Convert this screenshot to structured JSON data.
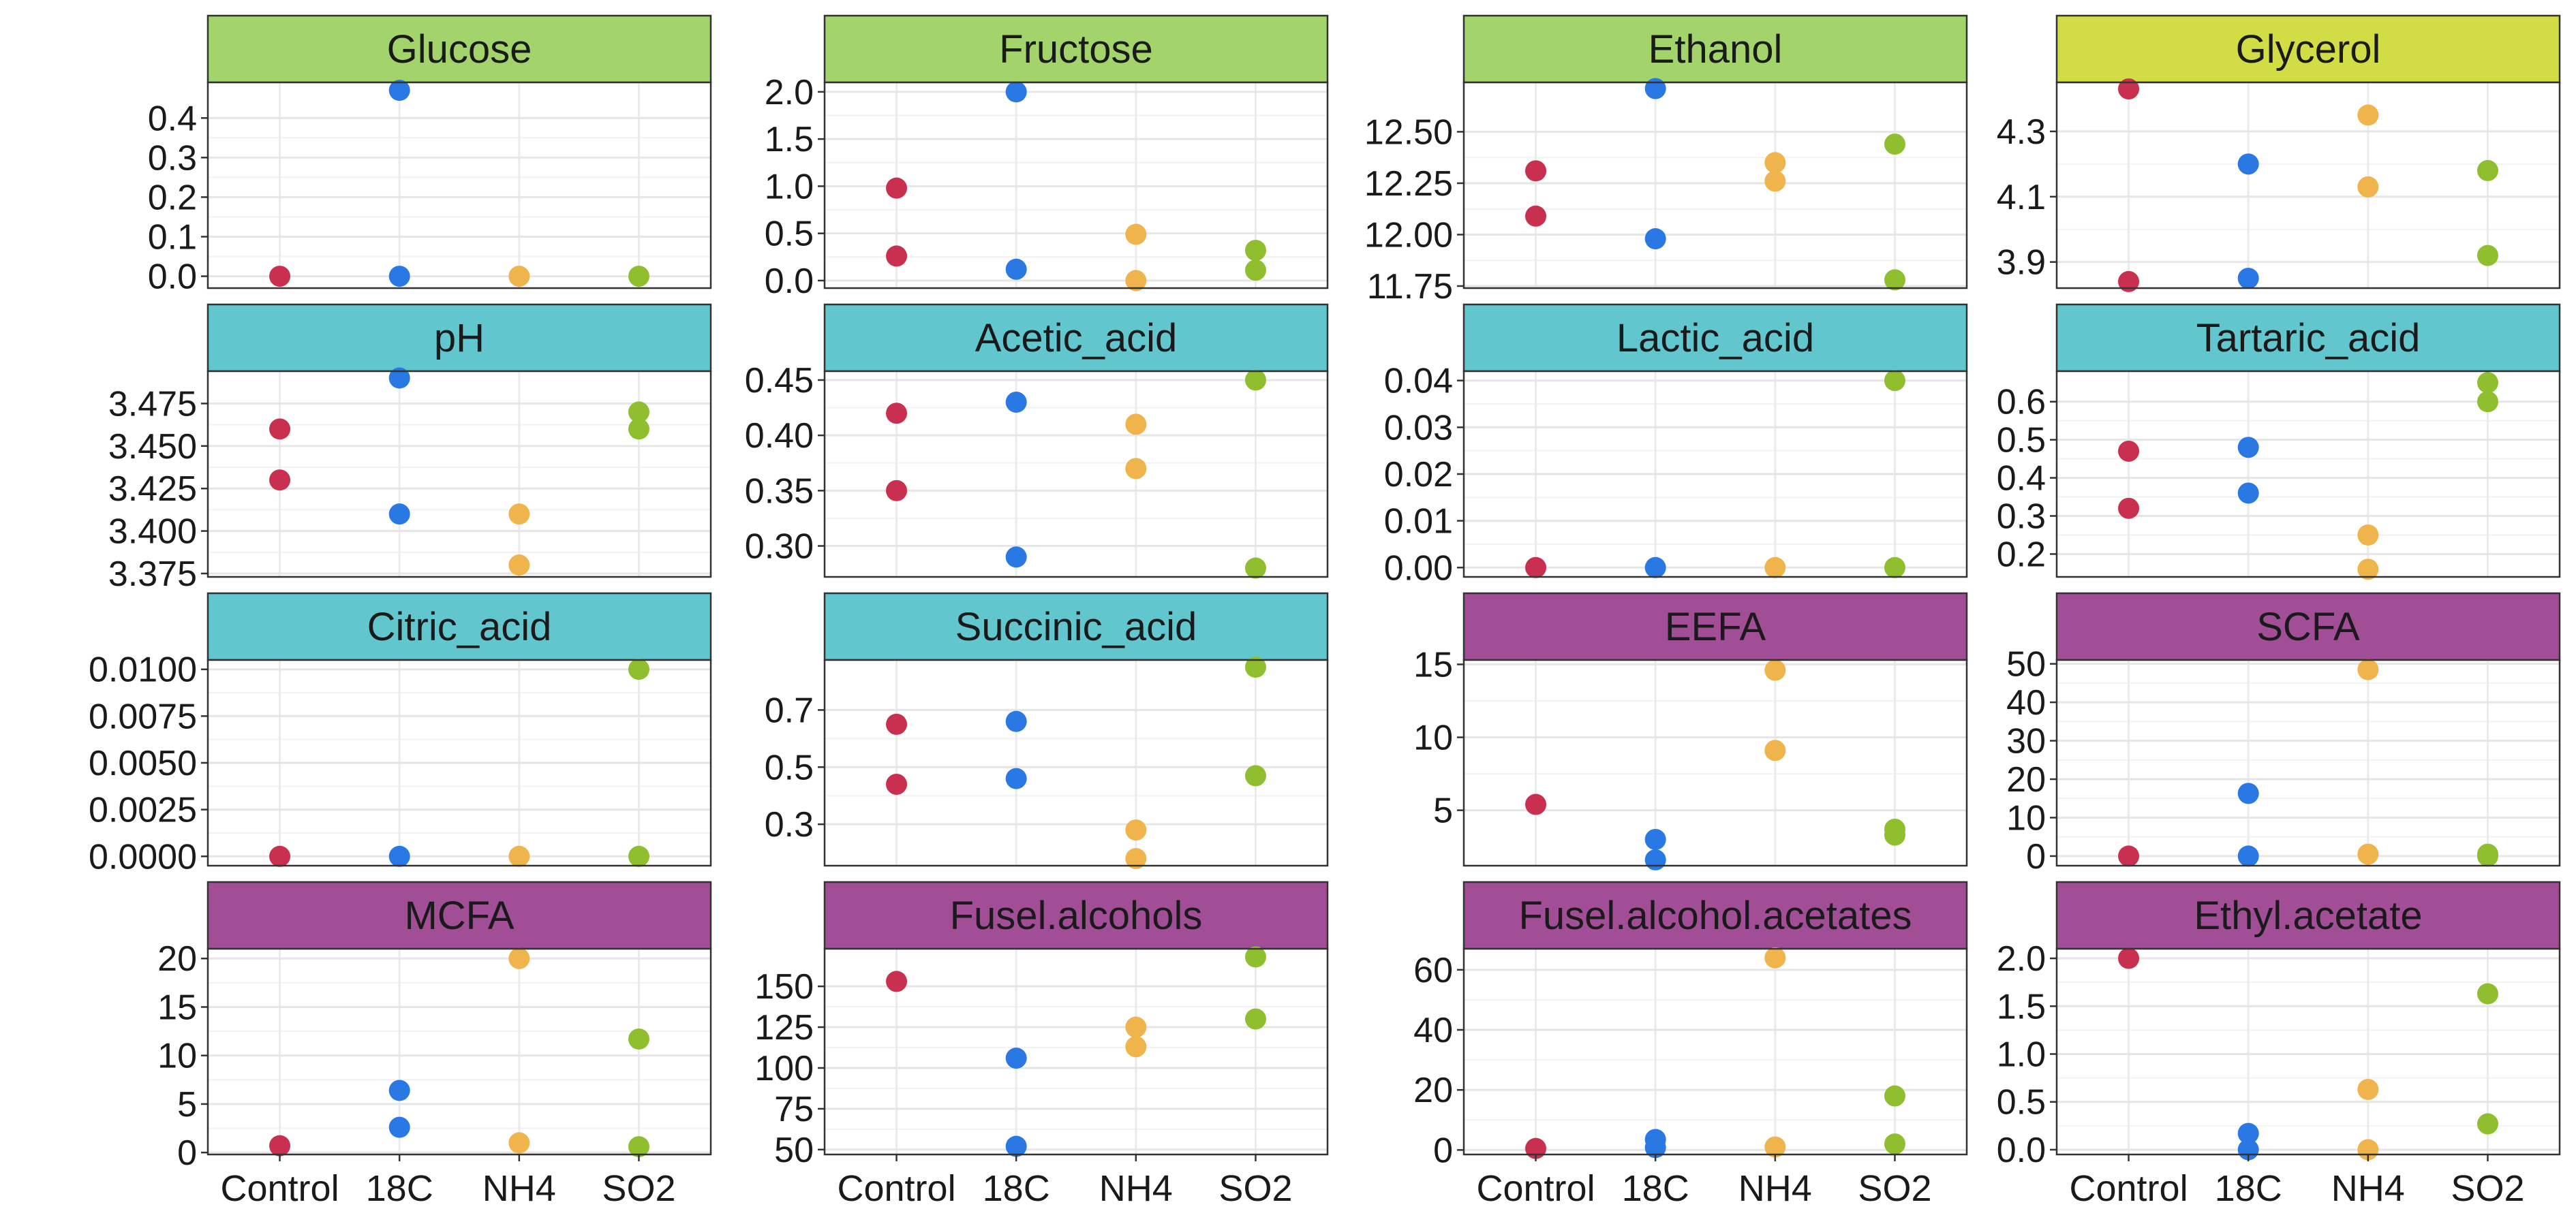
{
  "chart_data": {
    "type": "scatter",
    "layout": "facet-grid",
    "categories": [
      "Control",
      "18C",
      "NH4",
      "SO2"
    ],
    "category_colors": {
      "Control": "#c9304f",
      "18C": "#2a78e4",
      "NH4": "#f0b44c",
      "SO2": "#8fbf2e"
    },
    "strip_group_colors": {
      "green": "#a3d36b",
      "yellow": "#d2dc44",
      "teal": "#62c6cf",
      "purple": "#a24e97"
    },
    "panels": [
      {
        "title": "Glucose",
        "strip": "green",
        "ylim": [
          -0.03,
          0.49
        ],
        "ticks": [
          0.0,
          0.1,
          0.2,
          0.3,
          0.4
        ],
        "tick_labels": [
          "0.0",
          "0.1",
          "0.2",
          "0.3",
          "0.4"
        ],
        "points": [
          {
            "x": "Control",
            "y": 0.0
          },
          {
            "x": "18C",
            "y": 0.47
          },
          {
            "x": "18C",
            "y": 0.0
          },
          {
            "x": "NH4",
            "y": 0.0
          },
          {
            "x": "SO2",
            "y": 0.0
          }
        ]
      },
      {
        "title": "Fructose",
        "strip": "green",
        "ylim": [
          -0.08,
          2.1
        ],
        "ticks": [
          0.0,
          0.5,
          1.0,
          1.5,
          2.0
        ],
        "tick_labels": [
          "0.0",
          "0.5",
          "1.0",
          "1.5",
          "2.0"
        ],
        "points": [
          {
            "x": "Control",
            "y": 0.98
          },
          {
            "x": "Control",
            "y": 0.26
          },
          {
            "x": "18C",
            "y": 2.0
          },
          {
            "x": "18C",
            "y": 0.12
          },
          {
            "x": "NH4",
            "y": 0.49
          },
          {
            "x": "NH4",
            "y": 0.0
          },
          {
            "x": "SO2",
            "y": 0.32
          },
          {
            "x": "SO2",
            "y": 0.11
          }
        ]
      },
      {
        "title": "Ethanol",
        "strip": "green",
        "ylim": [
          11.74,
          12.74
        ],
        "ticks": [
          11.75,
          12.0,
          12.25,
          12.5
        ],
        "tick_labels": [
          "11.75",
          "12.00",
          "12.25",
          "12.50"
        ],
        "points": [
          {
            "x": "Control",
            "y": 12.31
          },
          {
            "x": "Control",
            "y": 12.09
          },
          {
            "x": "18C",
            "y": 12.71
          },
          {
            "x": "18C",
            "y": 11.98
          },
          {
            "x": "NH4",
            "y": 12.35
          },
          {
            "x": "NH4",
            "y": 12.26
          },
          {
            "x": "SO2",
            "y": 12.44
          },
          {
            "x": "SO2",
            "y": 11.78
          }
        ]
      },
      {
        "title": "Glycerol",
        "strip": "yellow",
        "ylim": [
          3.82,
          4.45
        ],
        "ticks": [
          3.9,
          4.1,
          4.3
        ],
        "tick_labels": [
          "3.9",
          "4.1",
          "4.3"
        ],
        "points": [
          {
            "x": "Control",
            "y": 4.43
          },
          {
            "x": "Control",
            "y": 3.84
          },
          {
            "x": "18C",
            "y": 4.2
          },
          {
            "x": "18C",
            "y": 3.85
          },
          {
            "x": "NH4",
            "y": 4.35
          },
          {
            "x": "NH4",
            "y": 4.13
          },
          {
            "x": "SO2",
            "y": 4.18
          },
          {
            "x": "SO2",
            "y": 3.92
          }
        ]
      },
      {
        "title": "pH",
        "strip": "teal",
        "ylim": [
          3.373,
          3.494
        ],
        "ticks": [
          3.375,
          3.4,
          3.425,
          3.45,
          3.475
        ],
        "tick_labels": [
          "3.375",
          "3.400",
          "3.425",
          "3.450",
          "3.475"
        ],
        "points": [
          {
            "x": "Control",
            "y": 3.46
          },
          {
            "x": "Control",
            "y": 3.43
          },
          {
            "x": "18C",
            "y": 3.49
          },
          {
            "x": "18C",
            "y": 3.41
          },
          {
            "x": "NH4",
            "y": 3.41
          },
          {
            "x": "NH4",
            "y": 3.38
          },
          {
            "x": "SO2",
            "y": 3.47
          },
          {
            "x": "SO2",
            "y": 3.46
          }
        ]
      },
      {
        "title": "Acetic_acid",
        "strip": "teal",
        "ylim": [
          0.272,
          0.458
        ],
        "ticks": [
          0.3,
          0.35,
          0.4,
          0.45
        ],
        "tick_labels": [
          "0.30",
          "0.35",
          "0.40",
          "0.45"
        ],
        "points": [
          {
            "x": "Control",
            "y": 0.42
          },
          {
            "x": "Control",
            "y": 0.35
          },
          {
            "x": "18C",
            "y": 0.43
          },
          {
            "x": "18C",
            "y": 0.29
          },
          {
            "x": "NH4",
            "y": 0.41
          },
          {
            "x": "NH4",
            "y": 0.37
          },
          {
            "x": "SO2",
            "y": 0.45
          },
          {
            "x": "SO2",
            "y": 0.28
          }
        ]
      },
      {
        "title": "Lactic_acid",
        "strip": "teal",
        "ylim": [
          -0.002,
          0.042
        ],
        "ticks": [
          0.0,
          0.01,
          0.02,
          0.03,
          0.04
        ],
        "tick_labels": [
          "0.00",
          "0.01",
          "0.02",
          "0.03",
          "0.04"
        ],
        "points": [
          {
            "x": "Control",
            "y": 0.0
          },
          {
            "x": "18C",
            "y": 0.0
          },
          {
            "x": "NH4",
            "y": 0.0
          },
          {
            "x": "SO2",
            "y": 0.04
          },
          {
            "x": "SO2",
            "y": 0.0
          }
        ]
      },
      {
        "title": "Tartaric_acid",
        "strip": "teal",
        "ylim": [
          0.14,
          0.68
        ],
        "ticks": [
          0.2,
          0.3,
          0.4,
          0.5,
          0.6
        ],
        "tick_labels": [
          "0.2",
          "0.3",
          "0.4",
          "0.5",
          "0.6"
        ],
        "points": [
          {
            "x": "Control",
            "y": 0.47
          },
          {
            "x": "Control",
            "y": 0.32
          },
          {
            "x": "18C",
            "y": 0.48
          },
          {
            "x": "18C",
            "y": 0.36
          },
          {
            "x": "NH4",
            "y": 0.25
          },
          {
            "x": "NH4",
            "y": 0.16
          },
          {
            "x": "SO2",
            "y": 0.65
          },
          {
            "x": "SO2",
            "y": 0.6
          }
        ]
      },
      {
        "title": "Citric_acid",
        "strip": "teal",
        "ylim": [
          -0.0005,
          0.0105
        ],
        "ticks": [
          0.0,
          0.0025,
          0.005,
          0.0075,
          0.01
        ],
        "tick_labels": [
          "0.0000",
          "0.0025",
          "0.0050",
          "0.0075",
          "0.0100"
        ],
        "points": [
          {
            "x": "Control",
            "y": 0.0
          },
          {
            "x": "18C",
            "y": 0.0
          },
          {
            "x": "NH4",
            "y": 0.0
          },
          {
            "x": "SO2",
            "y": 0.01
          },
          {
            "x": "SO2",
            "y": 0.0
          }
        ]
      },
      {
        "title": "Succinic_acid",
        "strip": "teal",
        "ylim": [
          0.155,
          0.875
        ],
        "ticks": [
          0.3,
          0.5,
          0.7
        ],
        "tick_labels": [
          "0.3",
          "0.5",
          "0.7"
        ],
        "points": [
          {
            "x": "Control",
            "y": 0.65
          },
          {
            "x": "Control",
            "y": 0.44
          },
          {
            "x": "18C",
            "y": 0.66
          },
          {
            "x": "18C",
            "y": 0.46
          },
          {
            "x": "NH4",
            "y": 0.28
          },
          {
            "x": "NH4",
            "y": 0.18
          },
          {
            "x": "SO2",
            "y": 0.85
          },
          {
            "x": "SO2",
            "y": 0.47
          }
        ]
      },
      {
        "title": "EEFA",
        "strip": "purple",
        "ylim": [
          1.2,
          15.3
        ],
        "ticks": [
          5,
          10,
          15
        ],
        "tick_labels": [
          "5",
          "10",
          "15"
        ],
        "points": [
          {
            "x": "Control",
            "y": 5.4
          },
          {
            "x": "18C",
            "y": 3.0
          },
          {
            "x": "18C",
            "y": 1.6
          },
          {
            "x": "NH4",
            "y": 14.6
          },
          {
            "x": "NH4",
            "y": 9.1
          },
          {
            "x": "SO2",
            "y": 3.7
          },
          {
            "x": "SO2",
            "y": 3.3
          }
        ]
      },
      {
        "title": "SCFA",
        "strip": "purple",
        "ylim": [
          -2.5,
          51.0
        ],
        "ticks": [
          0,
          10,
          20,
          30,
          40,
          50
        ],
        "tick_labels": [
          "0",
          "10",
          "20",
          "30",
          "40",
          "50"
        ],
        "points": [
          {
            "x": "Control",
            "y": 0.0
          },
          {
            "x": "18C",
            "y": 16.3
          },
          {
            "x": "18C",
            "y": 0.0
          },
          {
            "x": "NH4",
            "y": 48.5
          },
          {
            "x": "NH4",
            "y": 0.5
          },
          {
            "x": "SO2",
            "y": 0.5
          },
          {
            "x": "SO2",
            "y": 0.0
          }
        ]
      },
      {
        "title": "MCFA",
        "strip": "purple",
        "ylim": [
          -0.2,
          21.0
        ],
        "ticks": [
          0,
          5,
          10,
          15,
          20
        ],
        "tick_labels": [
          "0",
          "5",
          "10",
          "15",
          "20"
        ],
        "points": [
          {
            "x": "Control",
            "y": 0.7
          },
          {
            "x": "18C",
            "y": 6.4
          },
          {
            "x": "18C",
            "y": 2.6
          },
          {
            "x": "NH4",
            "y": 20.0
          },
          {
            "x": "NH4",
            "y": 1.0
          },
          {
            "x": "SO2",
            "y": 11.7
          },
          {
            "x": "SO2",
            "y": 0.6
          }
        ]
      },
      {
        "title": "Fusel.alcohols",
        "strip": "purple",
        "ylim": [
          47.0,
          173.0
        ],
        "ticks": [
          50,
          75,
          100,
          125,
          150
        ],
        "tick_labels": [
          "50",
          "75",
          "100",
          "125",
          "150"
        ],
        "points": [
          {
            "x": "Control",
            "y": 153.0
          },
          {
            "x": "18C",
            "y": 106.0
          },
          {
            "x": "18C",
            "y": 52.0
          },
          {
            "x": "NH4",
            "y": 125.0
          },
          {
            "x": "NH4",
            "y": 113.0
          },
          {
            "x": "SO2",
            "y": 168.0
          },
          {
            "x": "SO2",
            "y": 130.0
          }
        ]
      },
      {
        "title": "Fusel.alcohol.acetates",
        "strip": "purple",
        "ylim": [
          -1.5,
          67.0
        ],
        "ticks": [
          0,
          20,
          40,
          60
        ],
        "tick_labels": [
          "0",
          "20",
          "40",
          "60"
        ],
        "points": [
          {
            "x": "Control",
            "y": 0.5
          },
          {
            "x": "18C",
            "y": 3.5
          },
          {
            "x": "18C",
            "y": 0.8
          },
          {
            "x": "NH4",
            "y": 64.0
          },
          {
            "x": "NH4",
            "y": 1.0
          },
          {
            "x": "SO2",
            "y": 18.0
          },
          {
            "x": "SO2",
            "y": 2.0
          }
        ]
      },
      {
        "title": "Ethyl.acetate",
        "strip": "purple",
        "ylim": [
          -0.05,
          2.1
        ],
        "ticks": [
          0.0,
          0.5,
          1.0,
          1.5,
          2.0
        ],
        "tick_labels": [
          "0.0",
          "0.5",
          "1.0",
          "1.5",
          "2.0"
        ],
        "points": [
          {
            "x": "Control",
            "y": 2.0
          },
          {
            "x": "18C",
            "y": 0.17
          },
          {
            "x": "18C",
            "y": 0.0
          },
          {
            "x": "NH4",
            "y": 0.63
          },
          {
            "x": "NH4",
            "y": 0.0
          },
          {
            "x": "SO2",
            "y": 1.63
          },
          {
            "x": "SO2",
            "y": 0.27
          }
        ]
      }
    ]
  }
}
